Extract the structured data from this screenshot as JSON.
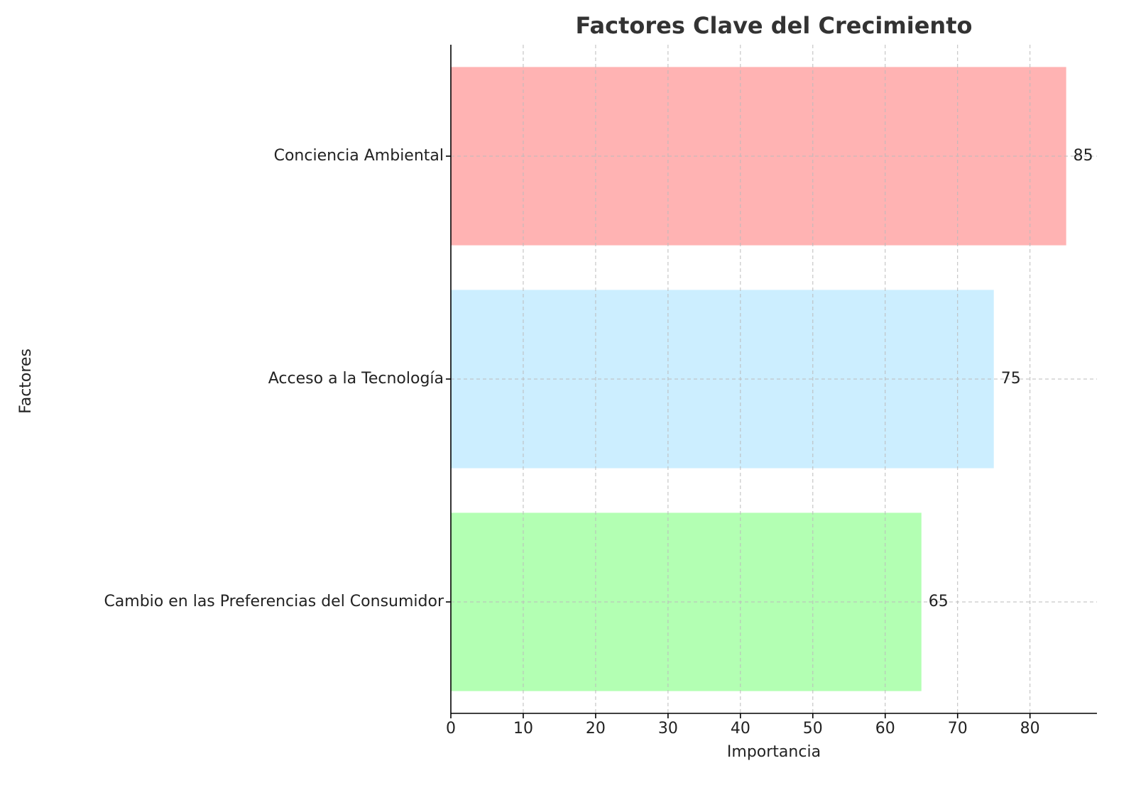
{
  "chart_data": {
    "type": "barh",
    "title": "Factores Clave del Crecimiento",
    "x_label": "Importancia",
    "y_label": "Factores",
    "categories": [
      "Cambio en las Preferencias del Consumidor",
      "Acceso a la Tecnología",
      "Conciencia Ambiental"
    ],
    "values": [
      65,
      75,
      85
    ],
    "colors": [
      "#b3ffb3",
      "#cceeff",
      "#ffb3b3"
    ],
    "xlim": [
      0,
      89.25
    ],
    "xticks": [
      0,
      10,
      20,
      30,
      40,
      50,
      60,
      70,
      80
    ],
    "grid": true
  }
}
